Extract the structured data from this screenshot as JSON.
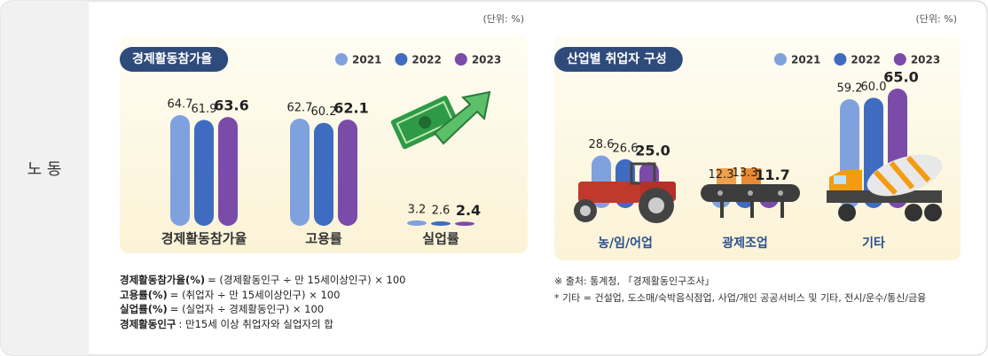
{
  "section_label": "노 동",
  "chart_data": [
    {
      "type": "bar",
      "title": "경제활동참가율",
      "unit": "(단위: %)",
      "categories": [
        "경제활동참가율",
        "고용률",
        "실업률"
      ],
      "series": [
        {
          "name": "2021",
          "color": "#7fa2df",
          "values": [
            64.7,
            62.7,
            3.2
          ]
        },
        {
          "name": "2022",
          "color": "#3f6cc0",
          "values": [
            61.9,
            60.2,
            2.6
          ]
        },
        {
          "name": "2023",
          "color": "#7b4ba9",
          "values": [
            63.6,
            62.1,
            2.4
          ]
        }
      ]
    },
    {
      "type": "bar",
      "title": "산업별 취업자 구성",
      "unit": "(단위: %)",
      "categories": [
        "농/임/어업",
        "광제조업",
        "기타"
      ],
      "series": [
        {
          "name": "2021",
          "color": "#7fa2df",
          "values": [
            28.6,
            12.3,
            59.2
          ]
        },
        {
          "name": "2022",
          "color": "#3f6cc0",
          "values": [
            26.6,
            13.3,
            60.0
          ],
          "value_labels": [
            "26.6",
            "13.3",
            "60.0"
          ]
        },
        {
          "name": "2023",
          "color": "#7b4ba9",
          "values": [
            25.0,
            11.7,
            65.0
          ],
          "value_labels": [
            "25.0",
            "11.7",
            "65.0"
          ]
        }
      ]
    }
  ],
  "definitions": [
    {
      "term": "경제활동참가율(%)",
      "text": "= (경제활동인구 ÷ 만 15세이상인구) × 100"
    },
    {
      "term": "고용률(%)",
      "text": "= (취업자 ÷ 만 15세이상인구) × 100"
    },
    {
      "term": "실업률(%)",
      "text": "= (실업자 ÷ 경제활동인구) × 100"
    },
    {
      "term": "경제활동인구",
      "text": ": 만15세 이상 취업자와  실업자의 합"
    }
  ],
  "notes": [
    "※ 출처: 통계청, 「경제활동인구조사」",
    "* 기타 = 건설업, 도소매/숙박음식점업, 사업/개인 공공서비스 및 기타, 전시/운수/통신/금융"
  ]
}
